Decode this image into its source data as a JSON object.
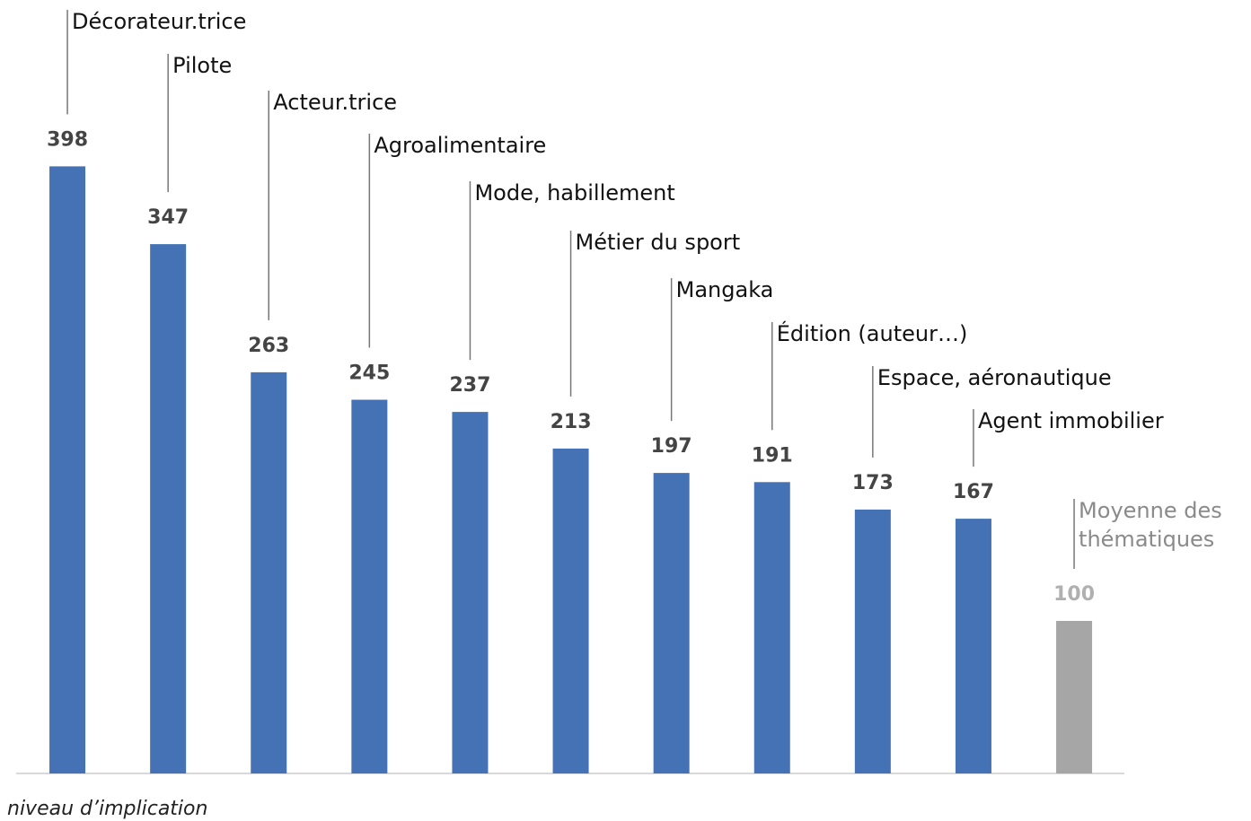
{
  "chart_data": {
    "type": "bar",
    "axis_label": "niveau d’implication",
    "categories": [
      "Décorateur.trice",
      "Pilote",
      "Acteur.trice",
      "Agroalimentaire",
      "Mode, habillement",
      "Métier du sport",
      "Mangaka",
      "Édition (auteur…)",
      "Espace, aéronautique",
      "Agent immobilier",
      "Moyenne des thématiques"
    ],
    "values": [
      398,
      347,
      263,
      245,
      237,
      213,
      197,
      191,
      173,
      167,
      100
    ],
    "colors": [
      "#4472b5",
      "#4472b5",
      "#4472b5",
      "#4472b5",
      "#4472b5",
      "#4472b5",
      "#4472b5",
      "#4472b5",
      "#4472b5",
      "#4472b5",
      "#a6a6a6"
    ],
    "label_colors": [
      "#111111",
      "#111111",
      "#111111",
      "#111111",
      "#111111",
      "#111111",
      "#111111",
      "#111111",
      "#111111",
      "#111111",
      "#8a8a8a"
    ],
    "value_label_colors": [
      "#444444",
      "#444444",
      "#444444",
      "#444444",
      "#444444",
      "#444444",
      "#444444",
      "#444444",
      "#444444",
      "#444444",
      "#b0b0b0"
    ],
    "ylim": [
      0,
      400
    ]
  }
}
